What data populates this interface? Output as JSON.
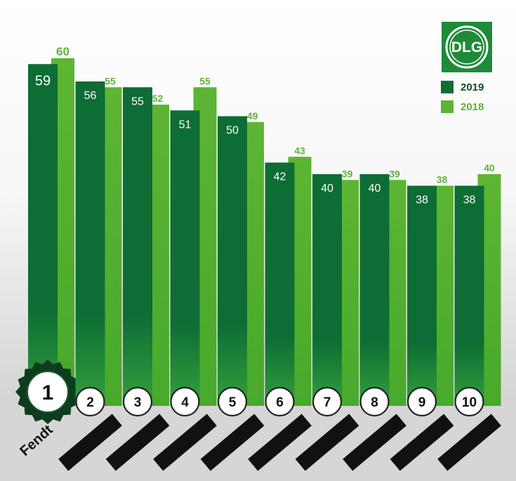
{
  "chart_data": {
    "type": "bar",
    "title": "",
    "xlabel": "",
    "ylabel": "",
    "ylim": [
      0,
      65
    ],
    "grid": false,
    "legend_position": "top-right",
    "categories": [
      "1",
      "2",
      "3",
      "4",
      "5",
      "6",
      "7",
      "8",
      "9",
      "10"
    ],
    "category_annotations": [
      "Fendt",
      "",
      "",
      "",
      "",
      "",
      "",
      "",
      "",
      ""
    ],
    "series": [
      {
        "name": "2019",
        "color": "#0e6d34",
        "values": [
          59,
          56,
          55,
          51,
          50,
          42,
          40,
          40,
          38,
          38
        ]
      },
      {
        "name": "2018",
        "color": "#5db533",
        "values": [
          60,
          55,
          52,
          55,
          49,
          43,
          39,
          39,
          38,
          40
        ]
      }
    ]
  },
  "logo": {
    "text": "DLG",
    "background": "#1f8a3a",
    "foreground": "#ffffff"
  },
  "colors": {
    "rank_badge_winner": "#0e3d1e",
    "redaction_bars": "#111111",
    "floor": "#d6d6d6"
  }
}
